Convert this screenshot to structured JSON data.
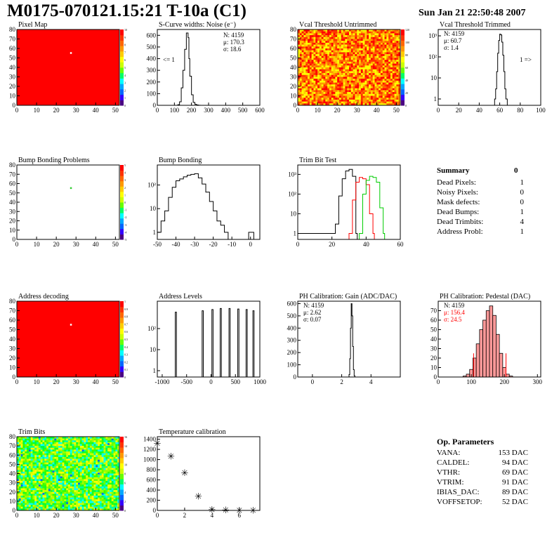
{
  "header": {
    "title": "M0175-070121.15:21 T-10a (C1)",
    "date": "Sun Jan 21 22:50:48 2007"
  },
  "colors": {
    "map_red": "#ff0000",
    "gain_line": "#000000",
    "trim_series": [
      "#000000",
      "#ff0000",
      "#00cc00"
    ],
    "pedestal_fill": "#ff9999"
  },
  "chart_data": [
    {
      "id": "pixel_map",
      "type": "heatmap",
      "title": "Pixel Map",
      "xlim": [
        0,
        52
      ],
      "ylim": [
        0,
        80
      ],
      "xticks": [
        "0",
        "10",
        "20",
        "30",
        "40",
        "50"
      ],
      "yticks": [
        "0",
        "10",
        "20",
        "30",
        "40",
        "50",
        "60",
        "70",
        "80"
      ],
      "palette_ticks": [
        "0",
        "1",
        "2",
        "3",
        "4",
        "5",
        "6",
        "7",
        "8",
        "9",
        "10"
      ],
      "fill": "uniform red (value 10)",
      "highlighted_pixels": [
        [
          27,
          55
        ]
      ]
    },
    {
      "id": "scurve_noise",
      "type": "line",
      "title": "S-Curve widths: Noise (e⁻)",
      "xlim": [
        0,
        600
      ],
      "ylim": [
        0,
        650
      ],
      "xticks": [
        "0",
        "100",
        "200",
        "300",
        "400",
        "500",
        "600"
      ],
      "yticks": [
        "0",
        "100",
        "200",
        "300",
        "400",
        "500",
        "600"
      ],
      "stats": {
        "N": "N: 4159",
        "mu": "μ: 170.3",
        "sigma": "σ: 18.6"
      },
      "annotation": "<= 1",
      "x": [
        110,
        120,
        130,
        140,
        150,
        160,
        170,
        175,
        180,
        185,
        190,
        200,
        210,
        220,
        230,
        240,
        250
      ],
      "y": [
        0,
        5,
        30,
        150,
        300,
        480,
        620,
        620,
        580,
        400,
        250,
        90,
        25,
        8,
        3,
        1,
        0
      ]
    },
    {
      "id": "vcal_untrimmed",
      "type": "heatmap",
      "title": "Vcal Threshold Untrimmed",
      "xlim": [
        0,
        52
      ],
      "ylim": [
        0,
        80
      ],
      "xticks": [
        "0",
        "10",
        "20",
        "30",
        "40",
        "50"
      ],
      "yticks": [
        "0",
        "10",
        "20",
        "30",
        "40",
        "50",
        "60",
        "70",
        "80"
      ],
      "palette_ticks": [
        "0",
        "20",
        "40",
        "60",
        "80",
        "100",
        "120"
      ],
      "fill": "noisy orange / yellow distribution"
    },
    {
      "id": "vcal_trimmed",
      "type": "line",
      "title": "Vcal Threshold Trimmed",
      "log_y": true,
      "xlim": [
        0,
        100
      ],
      "ylim": [
        0.5,
        2000
      ],
      "xticks": [
        "0",
        "20",
        "40",
        "60",
        "80",
        "100"
      ],
      "yticks": [
        "1",
        "10",
        "10²",
        "10³"
      ],
      "stats": {
        "N": "N: 4159",
        "mu": "μ: 60.7",
        "sigma": "σ: 1.4"
      },
      "annotation": "1 =>",
      "x": [
        55,
        56,
        57,
        58,
        59,
        60,
        61,
        62,
        63,
        64,
        65,
        66
      ],
      "y": [
        1,
        3,
        20,
        150,
        600,
        1200,
        1100,
        500,
        120,
        20,
        3,
        1
      ]
    },
    {
      "id": "bump_map",
      "type": "heatmap",
      "title": "Bump Bonding Problems",
      "xlim": [
        0,
        52
      ],
      "ylim": [
        0,
        80
      ],
      "xticks": [
        "0",
        "10",
        "20",
        "30",
        "40",
        "50"
      ],
      "yticks": [
        "0",
        "10",
        "20",
        "30",
        "40",
        "50",
        "60",
        "70",
        "80"
      ],
      "palette_ticks": [
        "-5",
        "-4",
        "-3",
        "-2",
        "-1",
        "0",
        "1",
        "2",
        "3",
        "4",
        "5"
      ],
      "highlighted_pixels": [
        [
          27,
          55
        ]
      ]
    },
    {
      "id": "bump_bonding",
      "type": "line",
      "title": "Bump Bonding",
      "log_y": true,
      "xlim": [
        -50,
        5
      ],
      "ylim": [
        0.5,
        700
      ],
      "xticks": [
        "-50",
        "-40",
        "-30",
        "-20",
        "-10",
        "0"
      ],
      "yticks": [
        "1",
        "10",
        "10²"
      ],
      "x": [
        -50,
        -48,
        -46,
        -44,
        -42,
        -40,
        -38,
        -36,
        -34,
        -32,
        -30,
        -28,
        -26,
        -24,
        -22,
        -20,
        -18,
        -16,
        -14,
        -12,
        -1,
        1
      ],
      "y": [
        1,
        3,
        8,
        30,
        80,
        150,
        180,
        220,
        260,
        280,
        300,
        200,
        110,
        50,
        20,
        8,
        3,
        2,
        1,
        0.5,
        1,
        1
      ]
    },
    {
      "id": "trim_bit_test",
      "type": "line",
      "title": "Trim Bit Test",
      "log_y": true,
      "xlim": [
        0,
        60
      ],
      "ylim": [
        0.5,
        3000
      ],
      "xticks": [
        "0",
        "20",
        "40",
        "60"
      ],
      "yticks": [
        "1",
        "10",
        "10²",
        "10³"
      ],
      "series": [
        {
          "x": [
            0,
            20,
            22,
            24,
            26,
            28,
            30,
            32,
            34
          ],
          "y": [
            1,
            1,
            3,
            80,
            600,
            1500,
            1800,
            800,
            1
          ]
        },
        {
          "x": [
            30,
            32,
            34,
            36,
            38,
            40,
            42,
            44
          ],
          "y": [
            1,
            50,
            400,
            700,
            600,
            300,
            10,
            1
          ]
        },
        {
          "x": [
            36,
            38,
            40,
            42,
            44,
            46,
            48,
            50
          ],
          "y": [
            1,
            100,
            500,
            800,
            700,
            400,
            20,
            1
          ]
        }
      ]
    },
    {
      "id": "address_decoding",
      "type": "heatmap",
      "title": "Address decoding",
      "xlim": [
        0,
        52
      ],
      "ylim": [
        0,
        80
      ],
      "xticks": [
        "0",
        "10",
        "20",
        "30",
        "40",
        "50"
      ],
      "yticks": [
        "0",
        "10",
        "20",
        "30",
        "40",
        "50",
        "60",
        "70",
        "80"
      ],
      "palette_ticks": [
        "0",
        "0.1",
        "0.2",
        "0.3",
        "0.4",
        "0.5",
        "0.6",
        "0.7",
        "0.8",
        "0.9",
        "1"
      ],
      "fill": "uniform red (value 1)",
      "highlighted_pixels": [
        [
          27,
          55
        ]
      ]
    },
    {
      "id": "address_levels",
      "type": "line",
      "title": "Address Levels",
      "log_y": true,
      "xlim": [
        -1100,
        1000
      ],
      "ylim": [
        0.5,
        2000
      ],
      "xticks": [
        "-1000",
        "-500",
        "0",
        "500",
        "1000"
      ],
      "yticks": [
        "1",
        "10",
        "10²"
      ],
      "peaks": [
        -720,
        -170,
        30,
        200,
        380,
        560,
        730,
        870
      ],
      "peak_values": [
        600,
        700,
        800,
        900,
        900,
        850,
        800,
        700
      ]
    },
    {
      "id": "ph_gain",
      "type": "line",
      "title": "PH Calibration: Gain (ADC/DAC)",
      "xlim": [
        -1,
        6
      ],
      "ylim": [
        0,
        620
      ],
      "xticks": [
        "0",
        "2",
        "4"
      ],
      "yticks": [
        "0",
        "100",
        "200",
        "300",
        "400",
        "500",
        "600"
      ],
      "stats": {
        "N": "N: 4159",
        "mu": "μ: 2.62",
        "sigma": "σ: 0.07"
      },
      "x": [
        2.4,
        2.5,
        2.55,
        2.6,
        2.65,
        2.7,
        2.75,
        2.8,
        2.85,
        2.9
      ],
      "y": [
        0,
        20,
        150,
        400,
        600,
        500,
        250,
        60,
        10,
        0
      ]
    },
    {
      "id": "ph_pedestal",
      "type": "bar",
      "title": "PH Calibration: Pedestal (DAC)",
      "xlim": [
        0,
        310
      ],
      "ylim": [
        0,
        80
      ],
      "xticks": [
        "0",
        "100",
        "200",
        "300"
      ],
      "yticks": [
        "0",
        "10",
        "20",
        "30",
        "40",
        "50",
        "60",
        "70"
      ],
      "stats": {
        "N": "N: 4159",
        "mu": "μ: 156.4",
        "sigma": "σ: 24.5"
      },
      "x": [
        80,
        90,
        100,
        110,
        120,
        130,
        140,
        150,
        160,
        170,
        180,
        190,
        200,
        210,
        220
      ],
      "y": [
        1,
        3,
        8,
        20,
        35,
        50,
        60,
        70,
        75,
        65,
        45,
        25,
        10,
        3,
        1
      ],
      "fit_lines_x": [
        107,
        205
      ]
    },
    {
      "id": "trim_bits",
      "type": "heatmap",
      "title": "Trim Bits",
      "xlim": [
        0,
        52
      ],
      "ylim": [
        0,
        80
      ],
      "xticks": [
        "0",
        "10",
        "20",
        "30",
        "40",
        "50"
      ],
      "yticks": [
        "0",
        "10",
        "20",
        "30",
        "40",
        "50",
        "60",
        "70",
        "80"
      ],
      "palette_ticks": [
        "0",
        "2",
        "4",
        "6",
        "8",
        "10",
        "12",
        "14",
        "16"
      ],
      "fill": "noisy green / yellow distribution"
    },
    {
      "id": "temperature_calibration",
      "type": "scatter",
      "title": "Temperature calibration",
      "xlim": [
        0,
        7.5
      ],
      "ylim": [
        0,
        1450
      ],
      "xticks": [
        "0",
        "2",
        "4",
        "6"
      ],
      "yticks": [
        "0",
        "200",
        "400",
        "600",
        "800",
        "1000",
        "1200",
        "1400"
      ],
      "x": [
        0,
        1,
        2,
        3,
        4,
        5,
        6,
        7
      ],
      "y": [
        1350,
        1100,
        770,
        310,
        45,
        40,
        35,
        35
      ]
    }
  ],
  "summary": {
    "title": "Summary",
    "title_value": "0",
    "rows": [
      {
        "label": "Dead Pixels:",
        "value": "1"
      },
      {
        "label": "Noisy Pixels:",
        "value": "0"
      },
      {
        "label": "Mask defects:",
        "value": "0"
      },
      {
        "label": "Dead Bumps:",
        "value": "1"
      },
      {
        "label": "Dead Trimbits:",
        "value": "4"
      },
      {
        "label": "Address Probl:",
        "value": "1"
      }
    ]
  },
  "op_params": {
    "title": "Op. Parameters",
    "rows": [
      {
        "label": "VANA:",
        "value": "153 DAC"
      },
      {
        "label": "CALDEL:",
        "value": "94 DAC"
      },
      {
        "label": "VTHR:",
        "value": "69 DAC"
      },
      {
        "label": "VTRIM:",
        "value": "91 DAC"
      },
      {
        "label": "IBIAS_DAC:",
        "value": "89 DAC"
      },
      {
        "label": "VOFFSETOP:",
        "value": "52 DAC"
      }
    ]
  }
}
